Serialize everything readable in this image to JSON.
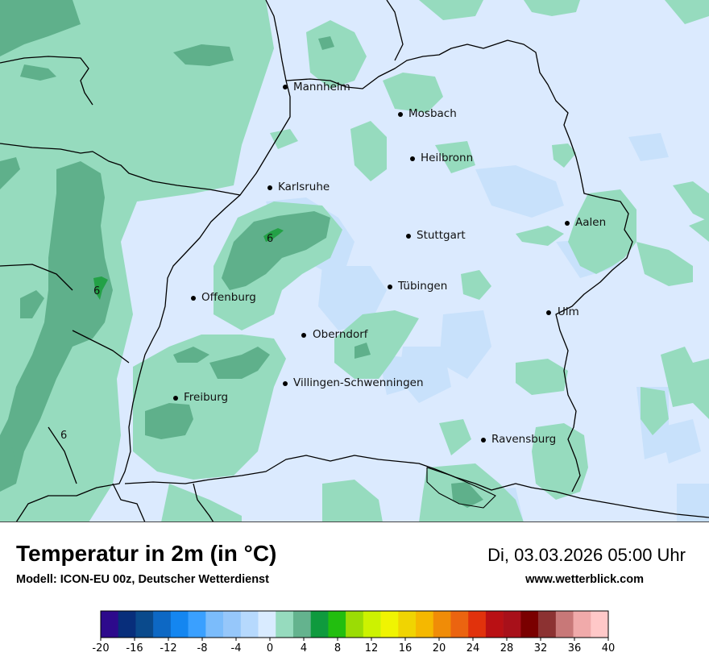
{
  "map": {
    "title": "Temperatur in 2m (in °C)",
    "model": "Modell: ICON-EU 00z, Deutscher Wetterdienst",
    "valid_time": "Di, 03.03.2026 05:00 Uhr",
    "website": "www.wetterblick.com",
    "colors": {
      "background": "#dbeafe",
      "cold_patch": "#c8e1fb",
      "band_0_4": "#96dbbe",
      "band_4_6": "#5fb08b",
      "band_6_8": "#23a146",
      "border": "#000000"
    },
    "cities": [
      {
        "name": "Mannheim"
      },
      {
        "name": "Mosbach"
      },
      {
        "name": "Heilbronn"
      },
      {
        "name": "Karlsruhe"
      },
      {
        "name": "Stuttgart"
      },
      {
        "name": "Aalen"
      },
      {
        "name": "Offenburg"
      },
      {
        "name": "Tübingen"
      },
      {
        "name": "Ulm"
      },
      {
        "name": "Oberndorf"
      },
      {
        "name": "Villingen-Schwenningen"
      },
      {
        "name": "Freiburg"
      },
      {
        "name": "Ravensburg"
      }
    ],
    "value_labels": [
      "6",
      "6",
      "6"
    ]
  },
  "legend": {
    "colors": [
      "#2d0a8c",
      "#082e7b",
      "#0a4a8c",
      "#0d68c4",
      "#1486f0",
      "#3aa0ff",
      "#7bbcfb",
      "#96c7fa",
      "#b6d9fd",
      "#d9ebff",
      "#96dbbe",
      "#64b38e",
      "#0f9a3e",
      "#22be0f",
      "#9bdc05",
      "#ccf201",
      "#f0f402",
      "#f0d402",
      "#f5b800",
      "#f08c07",
      "#eb6410",
      "#e1320c",
      "#b91014",
      "#a8101a",
      "#7a0000",
      "#8c3232",
      "#c87878",
      "#f0aaaa",
      "#ffc8c8"
    ],
    "tick_labels": [
      "-20",
      "-16",
      "-12",
      "-8",
      "-4",
      "0",
      "4",
      "8",
      "12",
      "16",
      "20",
      "24",
      "28",
      "32",
      "36",
      "40"
    ]
  }
}
